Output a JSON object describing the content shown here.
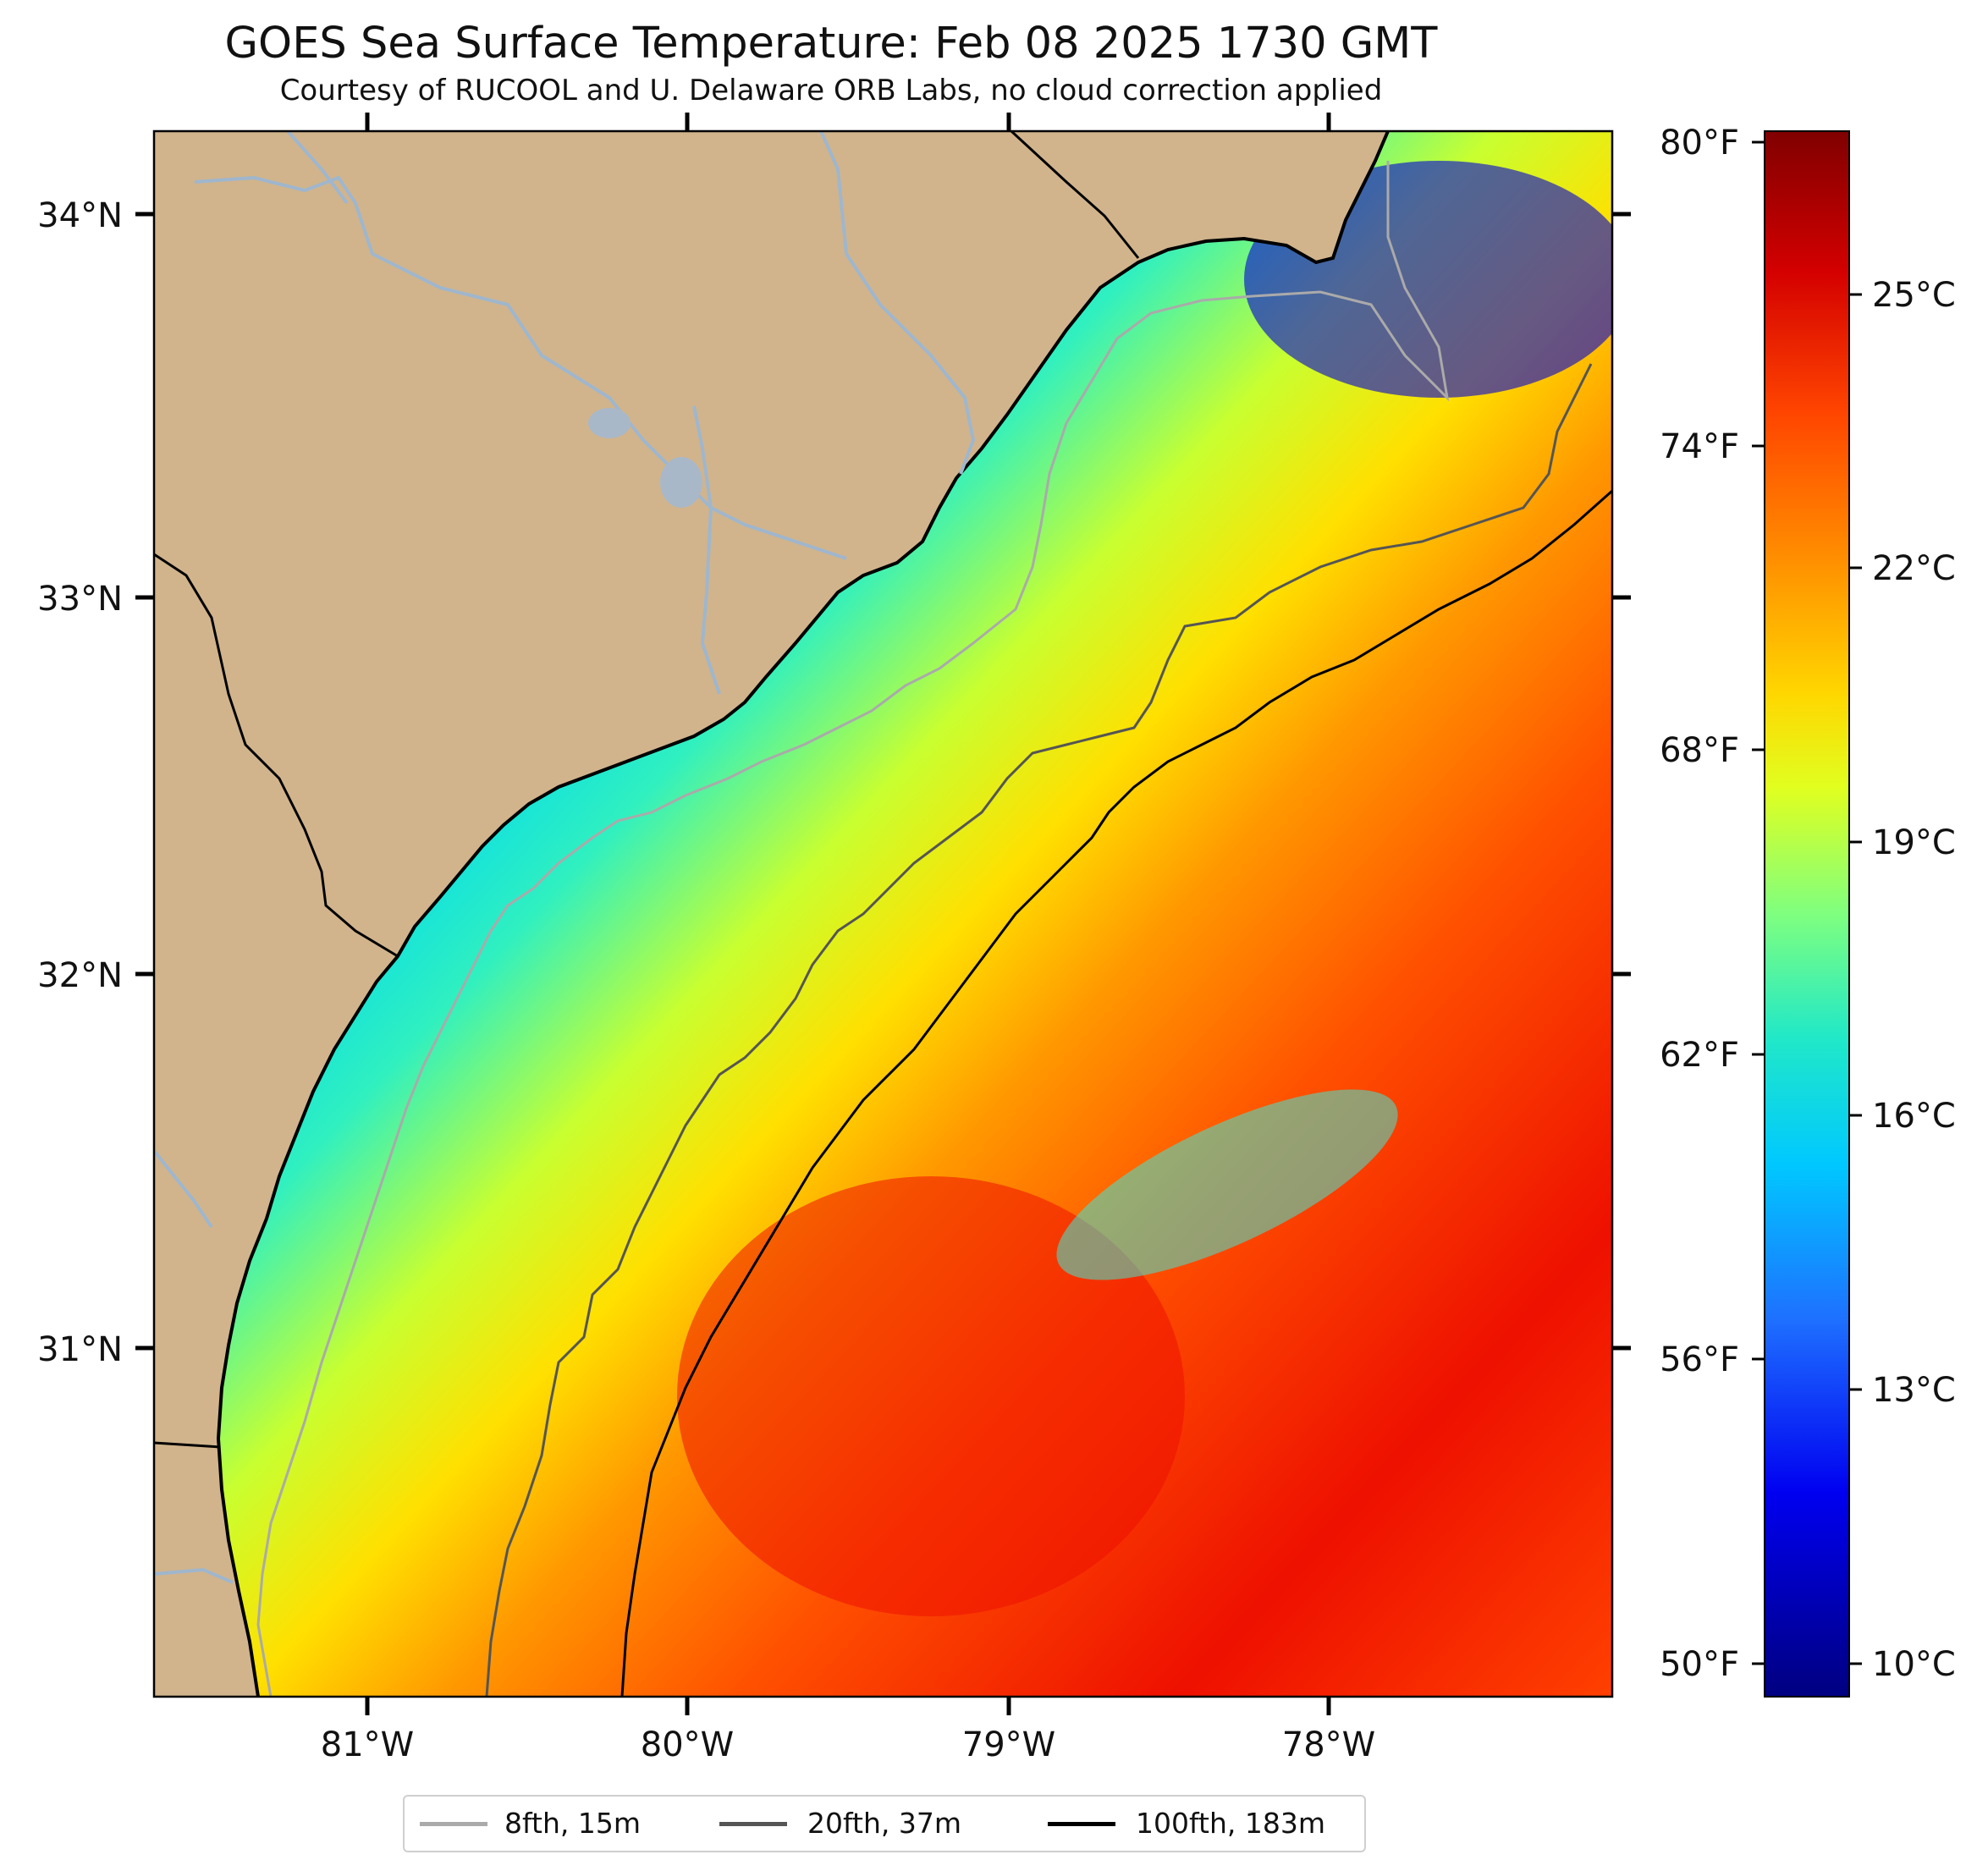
{
  "title": "GOES Sea Surface Temperature: Feb 08 2025 1730 GMT",
  "subtitle": "Courtesy of RUCOOL and U. Delaware ORB Labs, no cloud correction applied",
  "map": {
    "land_color": "#d1b48c",
    "coast_color": "#000000",
    "river_color": "#9fb6cd",
    "lat_ticks": [
      "34°N",
      "33°N",
      "32°N",
      "31°N"
    ],
    "lon_ticks": [
      "81°W",
      "80°W",
      "79°W",
      "78°W"
    ]
  },
  "colorbar": {
    "fahrenheit_labels": [
      "80°F",
      "74°F",
      "68°F",
      "62°F",
      "56°F",
      "50°F"
    ],
    "celsius_labels": [
      "25°C",
      "22°C",
      "19°C",
      "16°C",
      "13°C",
      "10°C"
    ],
    "colors": [
      "#800000",
      "#d40000",
      "#ff4500",
      "#ff8c00",
      "#ffd700",
      "#e0ff20",
      "#7fff7f",
      "#20e8c8",
      "#00c8ff",
      "#1e6fff",
      "#0000f0",
      "#000080"
    ]
  },
  "legend": {
    "items": [
      {
        "label": "8fth, 15m",
        "color": "#aaaaaa"
      },
      {
        "label": "20fth, 37m",
        "color": "#555555"
      },
      {
        "label": "100fth, 183m",
        "color": "#000000"
      }
    ]
  }
}
